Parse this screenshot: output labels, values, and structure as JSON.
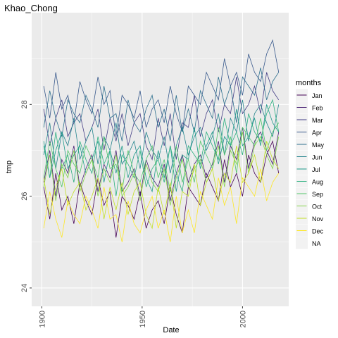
{
  "chart_data": {
    "type": "line",
    "title": "Khao_Chong",
    "x_label": "Date",
    "y_label": "tmp",
    "legend_title": "months",
    "legend_na": "NA",
    "grid": true,
    "xlim": [
      1895,
      2023
    ],
    "xticks": [
      1900,
      1950,
      2000
    ],
    "ylim": [
      23.6,
      30.0
    ],
    "yticks": [
      24,
      26,
      28
    ],
    "x": [
      1901,
      1904,
      1907,
      1910,
      1913,
      1916,
      1919,
      1922,
      1925,
      1928,
      1931,
      1934,
      1937,
      1940,
      1943,
      1946,
      1949,
      1952,
      1955,
      1958,
      1961,
      1964,
      1967,
      1970,
      1973,
      1976,
      1979,
      1982,
      1985,
      1988,
      1991,
      1994,
      1997,
      2000,
      2003,
      2006,
      2009,
      2012,
      2015,
      2018
    ],
    "series": [
      {
        "name": "Jan",
        "color": "#440154",
        "values": [
          26.2,
          25.5,
          26.5,
          25.7,
          26.0,
          25.4,
          26.3,
          25.9,
          25.6,
          26.4,
          25.8,
          26.1,
          25.1,
          26.0,
          25.8,
          25.5,
          26.1,
          25.3,
          25.7,
          25.9,
          25.4,
          26.2,
          25.6,
          25.2,
          26.2,
          26.0,
          25.8,
          26.5,
          26.2,
          25.9,
          26.8,
          26.2,
          26.5,
          26.0,
          26.9,
          26.5,
          26.3,
          26.9,
          27.2,
          26.5
        ]
      },
      {
        "name": "Feb",
        "color": "#482173",
        "values": [
          26.3,
          27.0,
          26.0,
          26.8,
          26.5,
          27.1,
          26.2,
          26.6,
          26.9,
          26.1,
          26.7,
          26.4,
          27.0,
          26.1,
          26.3,
          26.6,
          26.0,
          26.8,
          26.4,
          26.2,
          26.7,
          25.9,
          26.5,
          26.9,
          26.3,
          26.7,
          26.9,
          26.4,
          26.7,
          27.2,
          26.3,
          27.1,
          26.8,
          27.5,
          26.6,
          27.2,
          27.4,
          27.0,
          26.7,
          27.4
        ]
      },
      {
        "name": "Mar",
        "color": "#433E85",
        "values": [
          27.9,
          27.1,
          27.7,
          28.1,
          27.3,
          27.6,
          27.8,
          27.2,
          27.5,
          27.9,
          27.0,
          27.7,
          27.2,
          27.8,
          27.1,
          27.6,
          27.8,
          27.1,
          26.8,
          27.7,
          27.1,
          27.8,
          26.8,
          27.6,
          27.5,
          28.2,
          27.3,
          27.8,
          28.1,
          27.4,
          28.0,
          27.8,
          28.6,
          27.8,
          28.0,
          28.4,
          27.8,
          28.7,
          28.3,
          28.1
        ]
      },
      {
        "name": "Apr",
        "color": "#38598C",
        "values": [
          28.4,
          27.7,
          28.7,
          27.9,
          28.2,
          27.6,
          28.5,
          28.1,
          27.8,
          28.6,
          28.0,
          28.3,
          27.3,
          28.2,
          28.0,
          27.7,
          28.3,
          27.5,
          27.9,
          28.1,
          27.6,
          28.4,
          27.8,
          27.4,
          28.4,
          28.2,
          28.0,
          28.7,
          28.4,
          28.1,
          29.0,
          28.4,
          28.7,
          28.2,
          29.1,
          28.7,
          28.5,
          29.1,
          29.4,
          28.7
        ]
      },
      {
        "name": "May",
        "color": "#2D708E",
        "values": [
          27.5,
          28.3,
          27.7,
          27.3,
          28.1,
          27.8,
          27.6,
          28.2,
          27.9,
          27.5,
          28.4,
          27.7,
          27.8,
          27.2,
          28.1,
          27.6,
          27.4,
          27.9,
          28.2,
          27.5,
          27.9,
          27.2,
          28.2,
          27.4,
          27.9,
          27.4,
          28.3,
          28.0,
          27.7,
          28.6,
          28.0,
          28.4,
          27.6,
          28.6,
          28.4,
          28.2,
          28.8,
          28.1,
          28.5,
          28.7
        ]
      },
      {
        "name": "Jun",
        "color": "#25858E",
        "values": [
          26.9,
          27.6,
          26.6,
          27.4,
          27.1,
          27.7,
          26.8,
          27.2,
          27.5,
          26.7,
          27.3,
          27.0,
          27.6,
          26.7,
          26.9,
          27.2,
          26.6,
          27.4,
          27.0,
          26.8,
          27.3,
          26.5,
          27.1,
          27.5,
          26.9,
          27.3,
          27.5,
          27.0,
          27.3,
          27.8,
          26.9,
          27.7,
          27.4,
          28.1,
          27.2,
          27.8,
          28.0,
          27.6,
          27.3,
          28.0
        ]
      },
      {
        "name": "Jul",
        "color": "#1E9B8A",
        "values": [
          27.2,
          26.4,
          27.0,
          27.4,
          26.6,
          26.9,
          27.1,
          26.5,
          26.8,
          27.2,
          26.3,
          27.0,
          26.5,
          27.1,
          26.4,
          26.9,
          27.1,
          26.4,
          26.1,
          27.0,
          26.4,
          27.1,
          26.1,
          26.9,
          26.8,
          27.5,
          26.6,
          27.1,
          27.4,
          26.7,
          27.3,
          27.1,
          27.9,
          27.1,
          27.3,
          27.7,
          27.1,
          28.0,
          27.6,
          27.4
        ]
      },
      {
        "name": "Aug",
        "color": "#2BB07F",
        "values": [
          27.1,
          26.4,
          27.4,
          26.6,
          26.9,
          26.3,
          27.2,
          26.8,
          26.5,
          27.3,
          26.7,
          27.0,
          26.0,
          26.9,
          26.7,
          26.4,
          27.0,
          26.2,
          26.6,
          26.8,
          26.3,
          27.1,
          26.5,
          26.1,
          27.1,
          26.9,
          26.7,
          27.4,
          27.1,
          26.8,
          27.7,
          27.1,
          27.4,
          26.9,
          27.8,
          27.4,
          27.2,
          27.8,
          28.1,
          27.4
        ]
      },
      {
        "name": "Sep",
        "color": "#51C56A",
        "values": [
          26.4,
          27.2,
          26.6,
          26.2,
          27.0,
          26.7,
          26.5,
          27.1,
          26.8,
          26.4,
          27.3,
          26.6,
          26.7,
          26.1,
          27.0,
          26.5,
          26.3,
          26.8,
          27.1,
          26.4,
          26.8,
          26.1,
          27.1,
          26.3,
          26.8,
          26.3,
          27.2,
          26.9,
          26.6,
          27.5,
          26.9,
          27.3,
          26.5,
          27.5,
          27.3,
          27.1,
          27.7,
          27.0,
          27.4,
          27.6
        ]
      },
      {
        "name": "Oct",
        "color": "#85D54A",
        "values": [
          26.2,
          26.9,
          25.9,
          26.7,
          26.4,
          27.0,
          26.1,
          26.5,
          26.8,
          26.0,
          26.6,
          26.3,
          26.9,
          26.0,
          26.2,
          26.5,
          25.9,
          26.7,
          26.3,
          26.1,
          26.6,
          25.8,
          26.4,
          26.8,
          26.2,
          26.6,
          26.8,
          26.3,
          26.6,
          27.1,
          26.2,
          27.0,
          26.7,
          27.4,
          26.5,
          27.1,
          27.3,
          26.9,
          26.6,
          27.3
        ]
      },
      {
        "name": "Nov",
        "color": "#C2DF23",
        "values": [
          26.4,
          25.6,
          26.2,
          26.6,
          25.8,
          26.1,
          26.3,
          25.7,
          26.0,
          26.4,
          25.5,
          26.2,
          25.7,
          26.3,
          25.6,
          26.1,
          26.3,
          25.6,
          25.3,
          26.2,
          25.6,
          26.3,
          25.3,
          26.1,
          26.0,
          26.7,
          25.8,
          26.3,
          26.6,
          25.9,
          26.5,
          26.3,
          27.1,
          26.3,
          26.5,
          26.9,
          26.3,
          27.2,
          26.8,
          26.6
        ]
      },
      {
        "name": "Dec",
        "color": "#FDE725",
        "values": [
          25.3,
          26.1,
          25.5,
          25.1,
          25.9,
          25.6,
          25.4,
          26.0,
          25.7,
          25.3,
          26.2,
          25.5,
          25.6,
          25.0,
          25.9,
          25.4,
          25.2,
          25.7,
          26.0,
          25.3,
          25.7,
          25.0,
          26.0,
          25.2,
          25.7,
          25.2,
          26.1,
          25.8,
          25.5,
          26.4,
          25.8,
          26.2,
          25.4,
          26.4,
          26.2,
          26.0,
          26.6,
          25.9,
          26.3,
          26.5
        ]
      }
    ]
  }
}
